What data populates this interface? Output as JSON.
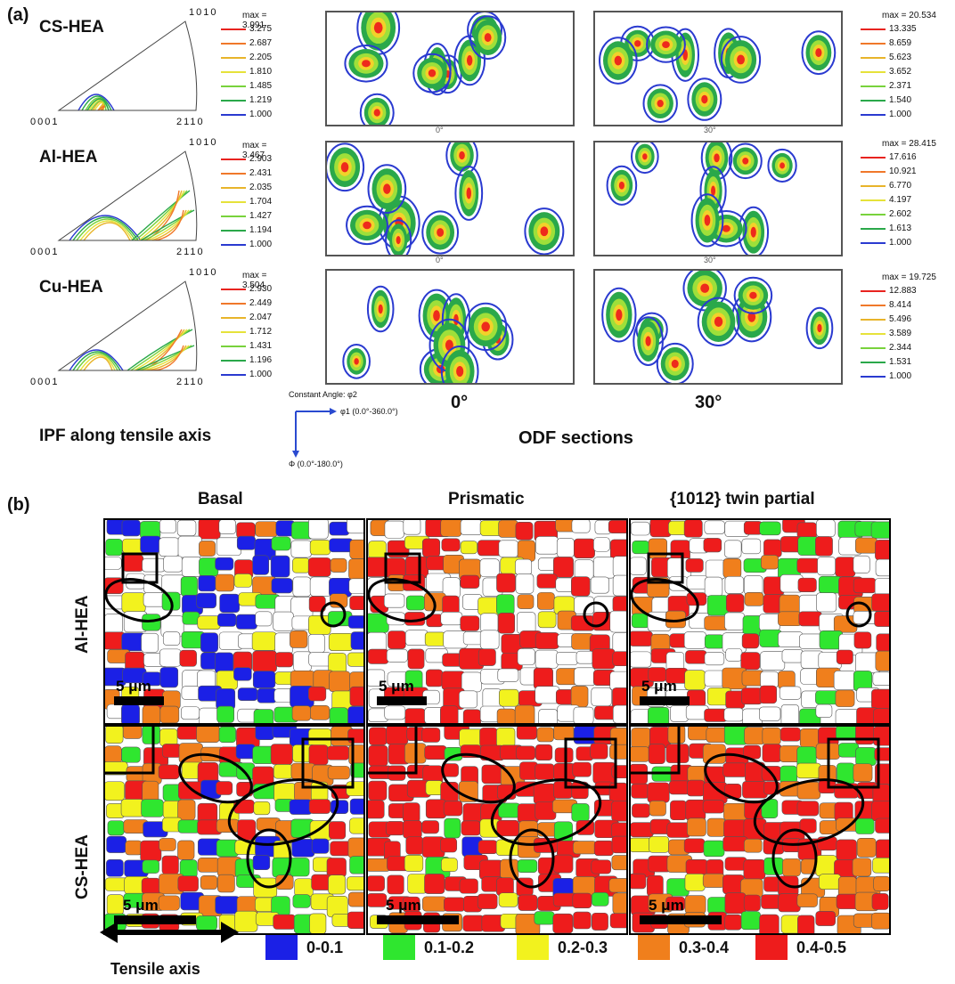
{
  "panel_a": {
    "label": "(a)",
    "ipf": {
      "title": "IPF along tensile axis",
      "axis_labels": {
        "top": "1010",
        "left": "0001",
        "right": "2110"
      },
      "materials": [
        {
          "name": "CS-HEA",
          "legend": {
            "max": "max = 3.991",
            "values": [
              "3.275",
              "2.687",
              "2.205",
              "1.810",
              "1.485",
              "1.219",
              "1.000"
            ]
          }
        },
        {
          "name": "Al-HEA",
          "legend": {
            "max": "max = 3.467",
            "values": [
              "2.903",
              "2.431",
              "2.035",
              "1.704",
              "1.427",
              "1.194",
              "1.000"
            ]
          }
        },
        {
          "name": "Cu-HEA",
          "legend": {
            "max": "max = 3.504",
            "values": [
              "2.930",
              "2.449",
              "2.047",
              "1.712",
              "1.431",
              "1.196",
              "1.000"
            ]
          }
        }
      ]
    },
    "odf": {
      "title": "ODF sections",
      "section_labels": [
        "0°",
        "30°"
      ],
      "tick_labels": [
        "0°",
        "30°"
      ],
      "legends": [
        {
          "max": "max = 20.534",
          "values": [
            "13.335",
            "8.659",
            "5.623",
            "3.652",
            "2.371",
            "1.540",
            "1.000"
          ]
        },
        {
          "max": "max = 28.415",
          "values": [
            "17.616",
            "10.921",
            "6.770",
            "4.197",
            "2.602",
            "1.613",
            "1.000"
          ]
        },
        {
          "max": "max = 19.725",
          "values": [
            "12.883",
            "8.414",
            "5.496",
            "3.589",
            "2.344",
            "1.531",
            "1.000"
          ]
        }
      ],
      "axes_note": {
        "constant_angle": "Constant Angle: φ2",
        "phi1": "φ1 (0.0°-360.0°)",
        "Phi": "Φ (0.0°-180.0°)"
      }
    },
    "contour_colors": [
      "#e8231f",
      "#f0782a",
      "#e8b42a",
      "#e6e23a",
      "#78d23c",
      "#2aa84a",
      "#2a3ad0"
    ]
  },
  "panel_b": {
    "label": "(b)",
    "columns": [
      "Basal",
      "Prismatic",
      "{1012} twin partial"
    ],
    "rows": [
      "Al-HEA",
      "CS-HEA"
    ],
    "scale_bar": "5 μm",
    "tensile_axis": "Tensile axis",
    "legend": [
      {
        "label": "0-0.1",
        "color": "#1b20e6"
      },
      {
        "label": "0.1-0.2",
        "color": "#2fe62f"
      },
      {
        "label": "0.2-0.3",
        "color": "#f2f21e"
      },
      {
        "label": "0.3-0.4",
        "color": "#f07f1c"
      },
      {
        "label": "0.4-0.5",
        "color": "#ee1c1c"
      }
    ]
  }
}
